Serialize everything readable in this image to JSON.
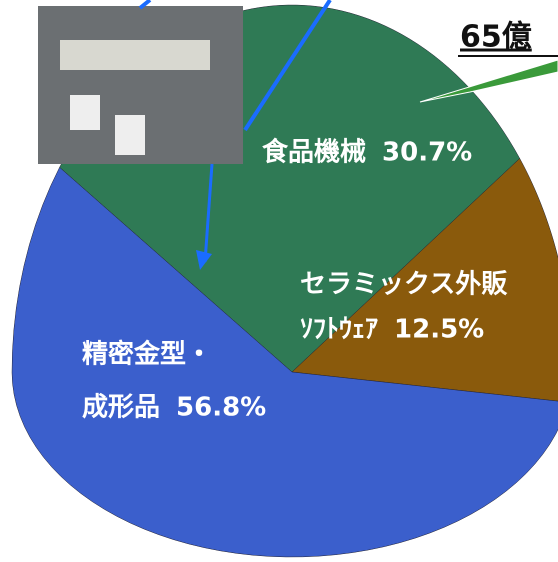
{
  "chart_data": {
    "type": "pie",
    "title": "65億",
    "categories": [
      [
        "食品機械"
      ],
      [
        "セラミックス外販",
        "ｿﾌﾄｳｪｱ"
      ],
      [
        "精密金型・",
        "成形品"
      ]
    ],
    "values": [
      30.7,
      12.5,
      56.8
    ],
    "value_labels": [
      "30.7%",
      "12.5%",
      "56.8%"
    ],
    "colors": [
      "#2f7a55",
      "#8a5a0c",
      "#3b5fcc"
    ]
  }
}
